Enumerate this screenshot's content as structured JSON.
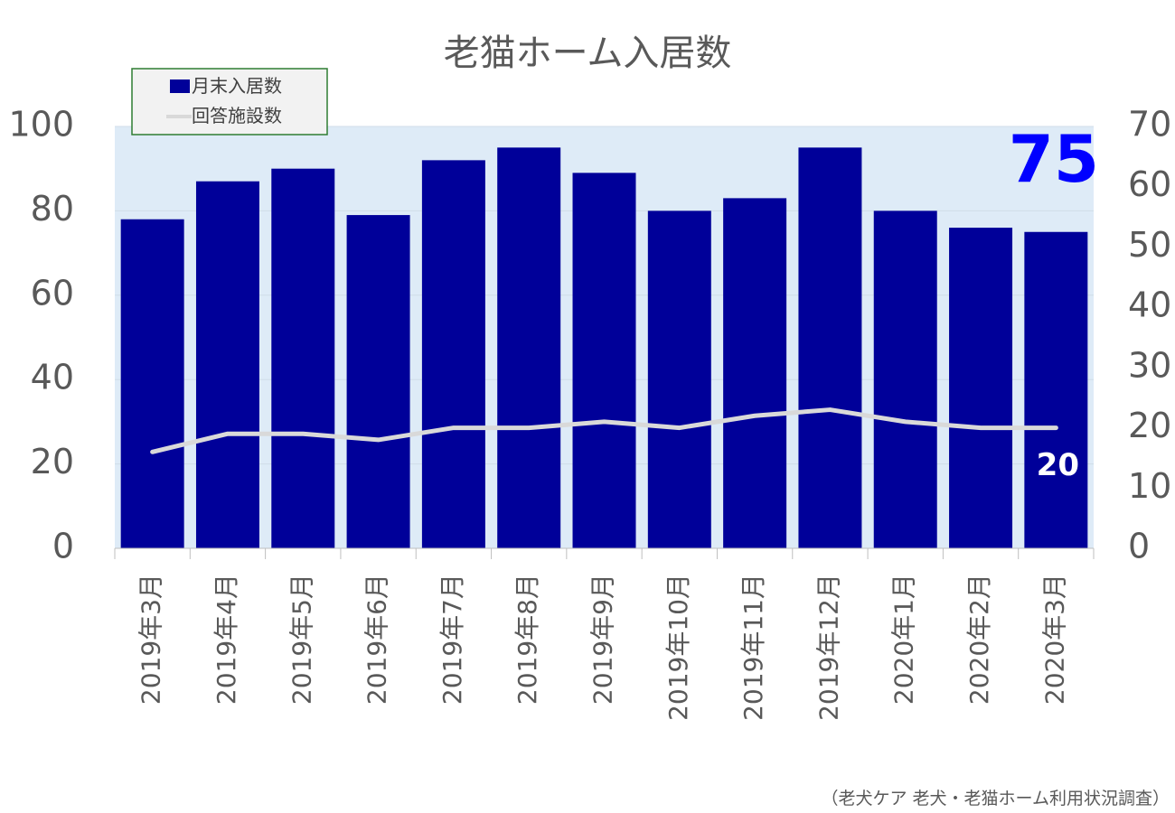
{
  "chart_data": {
    "type": "bar",
    "title": "老猫ホーム入居数",
    "categories": [
      "2019年3月",
      "2019年4月",
      "2019年5月",
      "2019年6月",
      "2019年7月",
      "2019年8月",
      "2019年9月",
      "2019年10月",
      "2019年11月",
      "2019年12月",
      "2020年1月",
      "2020年2月",
      "2020年3月"
    ],
    "series": [
      {
        "name": "月末入居数",
        "kind": "bar",
        "axis": "left",
        "color": "#000099",
        "values": [
          78,
          87,
          90,
          79,
          92,
          95,
          89,
          80,
          83,
          95,
          80,
          76,
          75
        ]
      },
      {
        "name": "回答施設数",
        "kind": "line",
        "axis": "right",
        "color": "#d9d9d9",
        "values": [
          16,
          19,
          19,
          18,
          20,
          20,
          21,
          20,
          22,
          23,
          21,
          20,
          20
        ]
      }
    ],
    "ylim_left": [
      0,
      100
    ],
    "yticks_left": [
      "0",
      "20",
      "40",
      "60",
      "80",
      "100"
    ],
    "ylim_right": [
      0,
      70
    ],
    "yticks_right": [
      "0",
      "10",
      "20",
      "30",
      "40",
      "50",
      "60",
      "70"
    ],
    "grid": true,
    "legend_position": "top-left",
    "highlights": {
      "bar_last": "75",
      "line_last": "20",
      "bar_last_color": "#0000ff",
      "line_last_color": "#ffffff"
    },
    "plot_background": "#deebf7",
    "source": "（老犬ケア 老犬・老猫ホーム利用状況調査）"
  }
}
